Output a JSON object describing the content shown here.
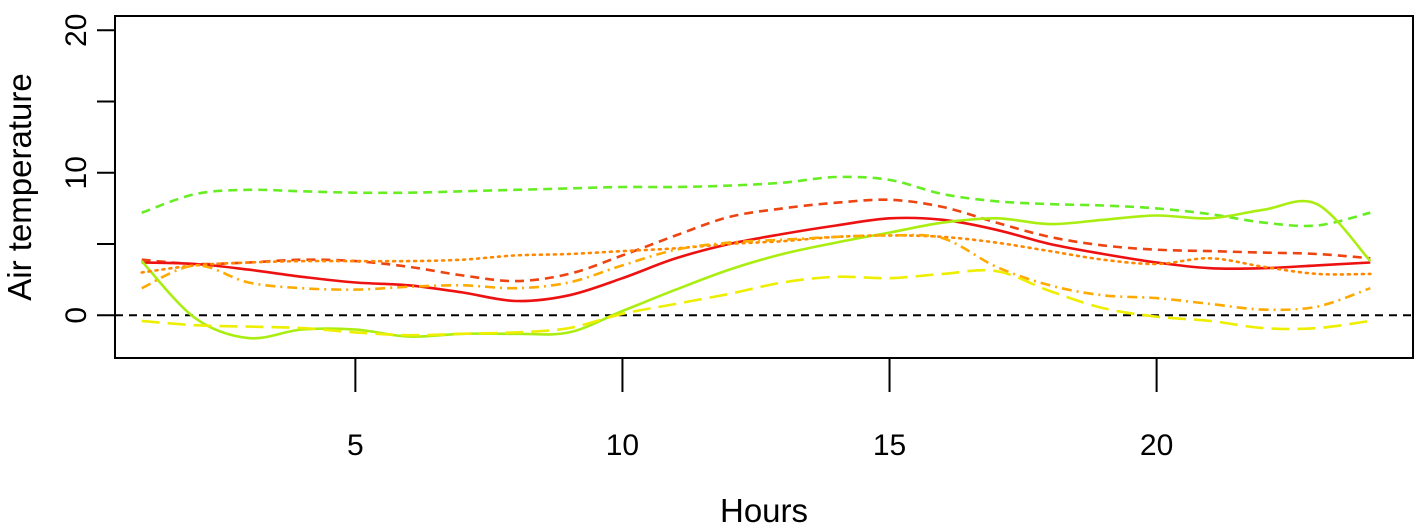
{
  "chart_data": {
    "type": "line",
    "xlabel": "Hours",
    "ylabel": "Air temperature",
    "xlim": [
      0.5,
      24.8
    ],
    "ylim": [
      -3,
      21
    ],
    "x_ticks": [
      5,
      10,
      15,
      20
    ],
    "x_tick_labels": [
      "5",
      "10",
      "15",
      "20"
    ],
    "y_ticks": [
      0,
      5,
      10,
      15,
      20
    ],
    "y_tick_labels": [
      "0",
      "",
      "10",
      "",
      "20"
    ],
    "reference_line": {
      "y": 0,
      "style": "dashed",
      "color": "#000000"
    },
    "series": [
      {
        "color": "#66ee22",
        "dash": "dashed",
        "points": [
          [
            1,
            7.2
          ],
          [
            2,
            8.5
          ],
          [
            3,
            8.8
          ],
          [
            4,
            8.7
          ],
          [
            5,
            8.6
          ],
          [
            6,
            8.6
          ],
          [
            7,
            8.7
          ],
          [
            8,
            8.8
          ],
          [
            9,
            8.9
          ],
          [
            10,
            9.0
          ],
          [
            11,
            9.0
          ],
          [
            12,
            9.1
          ],
          [
            13,
            9.3
          ],
          [
            14,
            9.7
          ],
          [
            15,
            9.5
          ],
          [
            16,
            8.5
          ],
          [
            17,
            8.0
          ],
          [
            18,
            7.8
          ],
          [
            19,
            7.7
          ],
          [
            20,
            7.5
          ],
          [
            21,
            7.1
          ],
          [
            22,
            6.5
          ],
          [
            23,
            6.3
          ],
          [
            24,
            7.2
          ]
        ]
      },
      {
        "color": "#ee4411",
        "dash": "dashed",
        "points": [
          [
            1,
            3.9
          ],
          [
            2,
            3.6
          ],
          [
            3,
            3.7
          ],
          [
            4,
            3.9
          ],
          [
            5,
            3.8
          ],
          [
            6,
            3.4
          ],
          [
            7,
            2.8
          ],
          [
            8,
            2.4
          ],
          [
            9,
            2.9
          ],
          [
            10,
            4.2
          ],
          [
            11,
            5.6
          ],
          [
            12,
            6.9
          ],
          [
            13,
            7.5
          ],
          [
            14,
            7.9
          ],
          [
            15,
            8.1
          ],
          [
            16,
            7.6
          ],
          [
            17,
            6.5
          ],
          [
            18,
            5.5
          ],
          [
            19,
            4.9
          ],
          [
            20,
            4.6
          ],
          [
            21,
            4.5
          ],
          [
            22,
            4.4
          ],
          [
            23,
            4.3
          ],
          [
            24,
            4.0
          ]
        ]
      },
      {
        "color": "#ee1111",
        "dash": "solid",
        "points": [
          [
            1,
            3.7
          ],
          [
            2,
            3.6
          ],
          [
            3,
            3.2
          ],
          [
            4,
            2.7
          ],
          [
            5,
            2.3
          ],
          [
            6,
            2.1
          ],
          [
            7,
            1.6
          ],
          [
            8,
            1.0
          ],
          [
            9,
            1.4
          ],
          [
            10,
            2.6
          ],
          [
            11,
            4.0
          ],
          [
            12,
            5.0
          ],
          [
            13,
            5.7
          ],
          [
            14,
            6.3
          ],
          [
            15,
            6.8
          ],
          [
            16,
            6.7
          ],
          [
            17,
            6.0
          ],
          [
            18,
            5.0
          ],
          [
            19,
            4.3
          ],
          [
            20,
            3.7
          ],
          [
            21,
            3.3
          ],
          [
            22,
            3.3
          ],
          [
            23,
            3.5
          ],
          [
            24,
            3.7
          ]
        ]
      },
      {
        "color": "#aaee11",
        "dash": "solid",
        "points": [
          [
            1,
            3.8
          ],
          [
            2,
            -0.2
          ],
          [
            3,
            -1.6
          ],
          [
            4,
            -1.0
          ],
          [
            5,
            -1.0
          ],
          [
            6,
            -1.5
          ],
          [
            7,
            -1.3
          ],
          [
            8,
            -1.3
          ],
          [
            9,
            -1.2
          ],
          [
            10,
            0.3
          ],
          [
            11,
            1.8
          ],
          [
            12,
            3.2
          ],
          [
            13,
            4.3
          ],
          [
            14,
            5.1
          ],
          [
            15,
            5.8
          ],
          [
            16,
            6.5
          ],
          [
            17,
            6.8
          ],
          [
            18,
            6.4
          ],
          [
            19,
            6.7
          ],
          [
            20,
            7.0
          ],
          [
            21,
            6.8
          ],
          [
            22,
            7.4
          ],
          [
            23,
            7.8
          ],
          [
            24,
            3.8
          ]
        ]
      },
      {
        "color": "#ff8800",
        "dash": "dotted",
        "points": [
          [
            1,
            3.0
          ],
          [
            2,
            3.5
          ],
          [
            3,
            3.7
          ],
          [
            4,
            3.8
          ],
          [
            5,
            3.8
          ],
          [
            6,
            3.8
          ],
          [
            7,
            3.9
          ],
          [
            8,
            4.2
          ],
          [
            9,
            4.3
          ],
          [
            10,
            4.5
          ],
          [
            11,
            4.7
          ],
          [
            12,
            5.0
          ],
          [
            13,
            5.2
          ],
          [
            14,
            5.5
          ],
          [
            15,
            5.6
          ],
          [
            16,
            5.5
          ],
          [
            17,
            5.1
          ],
          [
            18,
            4.5
          ],
          [
            19,
            3.9
          ],
          [
            20,
            3.6
          ],
          [
            21,
            4.0
          ],
          [
            22,
            3.4
          ],
          [
            23,
            2.9
          ],
          [
            24,
            2.9
          ]
        ]
      },
      {
        "color": "#ffaa00",
        "dash": "dashdot",
        "points": [
          [
            1,
            1.9
          ],
          [
            2,
            3.5
          ],
          [
            3,
            2.3
          ],
          [
            4,
            1.9
          ],
          [
            5,
            1.8
          ],
          [
            6,
            2.0
          ],
          [
            7,
            2.1
          ],
          [
            8,
            1.9
          ],
          [
            9,
            2.3
          ],
          [
            10,
            3.5
          ],
          [
            11,
            4.6
          ],
          [
            12,
            5.1
          ],
          [
            13,
            5.3
          ],
          [
            14,
            5.5
          ],
          [
            15,
            5.6
          ],
          [
            16,
            5.4
          ],
          [
            17,
            3.4
          ],
          [
            18,
            2.1
          ],
          [
            19,
            1.4
          ],
          [
            20,
            1.2
          ],
          [
            21,
            0.8
          ],
          [
            22,
            0.4
          ],
          [
            23,
            0.6
          ],
          [
            24,
            1.9
          ]
        ]
      },
      {
        "color": "#eeee00",
        "dash": "longdash",
        "points": [
          [
            1,
            -0.4
          ],
          [
            2,
            -0.7
          ],
          [
            3,
            -0.8
          ],
          [
            4,
            -0.9
          ],
          [
            5,
            -1.2
          ],
          [
            6,
            -1.4
          ],
          [
            7,
            -1.3
          ],
          [
            8,
            -1.2
          ],
          [
            9,
            -0.9
          ],
          [
            10,
            0.1
          ],
          [
            11,
            0.8
          ],
          [
            12,
            1.5
          ],
          [
            13,
            2.3
          ],
          [
            14,
            2.7
          ],
          [
            15,
            2.6
          ],
          [
            16,
            2.9
          ],
          [
            17,
            3.1
          ],
          [
            18,
            1.7
          ],
          [
            19,
            0.5
          ],
          [
            20,
            -0.1
          ],
          [
            21,
            -0.4
          ],
          [
            22,
            -0.9
          ],
          [
            23,
            -0.9
          ],
          [
            24,
            -0.4
          ]
        ]
      }
    ]
  }
}
